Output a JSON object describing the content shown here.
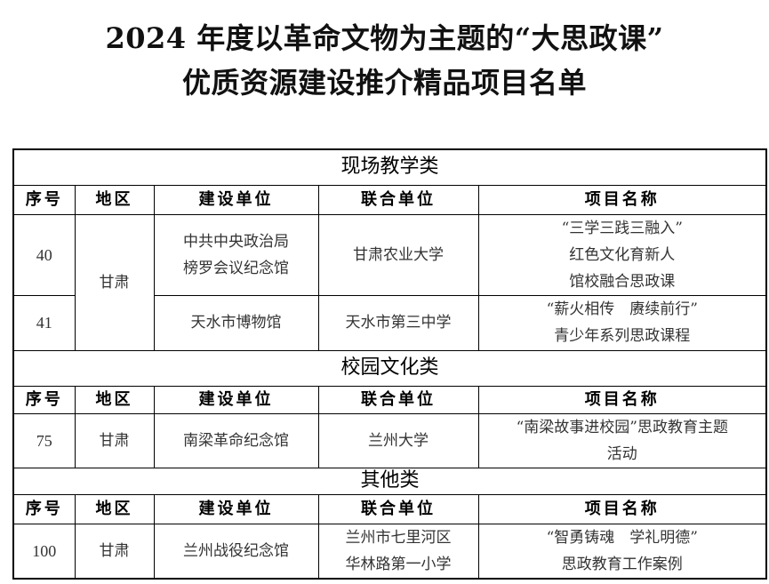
{
  "title": {
    "line1": "2024 年度以革命文物为主题的“大思政课”",
    "line2": "优质资源建设推介精品项目名单"
  },
  "columns": [
    "序号",
    "地区",
    "建设单位",
    "联合单位",
    "项目名称"
  ],
  "sections": [
    {
      "name": "现场教学类",
      "rows": [
        {
          "no": "40",
          "region": "甘肃",
          "builder": [
            "中共中央政治局",
            "榜罗会议纪念馆"
          ],
          "partner": [
            "甘肃农业大学"
          ],
          "project": [
            "“三学三践三融入”",
            "红色文化育新人",
            "馆校融合思政课"
          ]
        },
        {
          "no": "41",
          "region": "甘肃",
          "builder": [
            "天水市博物馆"
          ],
          "partner": [
            "天水市第三中学"
          ],
          "project": [
            "“薪火相传　赓续前行”",
            "青少年系列思政课程"
          ]
        }
      ]
    },
    {
      "name": "校园文化类",
      "rows": [
        {
          "no": "75",
          "region": "甘肃",
          "builder": [
            "南梁革命纪念馆"
          ],
          "partner": [
            "兰州大学"
          ],
          "project": [
            "“南梁故事进校园”思政教育主题",
            "活动"
          ]
        }
      ]
    },
    {
      "name": "其他类",
      "rows": [
        {
          "no": "100",
          "region": "甘肃",
          "builder": [
            "兰州战役纪念馆"
          ],
          "partner": [
            "兰州市七里河区",
            "华林路第一小学"
          ],
          "project": [
            "“智勇铸魂　学礼明德”",
            "思政教育工作案例"
          ]
        }
      ]
    }
  ]
}
